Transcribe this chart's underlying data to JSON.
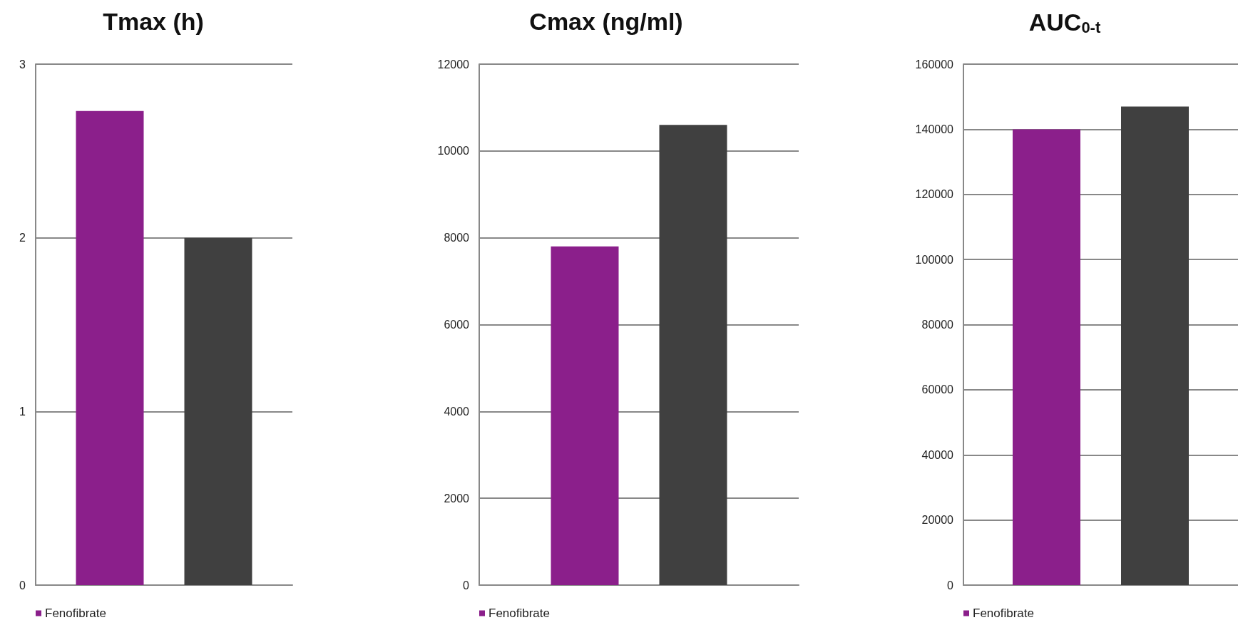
{
  "chart_data": [
    {
      "type": "bar",
      "title": "Tmax (h)",
      "categories": [
        null
      ],
      "series": [
        {
          "name": "Fenofibrate",
          "color": "#8b1f8b",
          "values": [
            2.73
          ]
        },
        {
          "color": "#404040",
          "values": [
            2.0
          ]
        }
      ],
      "ylim": [
        0,
        3
      ],
      "yticks": [
        0,
        1,
        2,
        3
      ],
      "grid": "y",
      "legend": "bottom left"
    },
    {
      "type": "bar",
      "title": "Cmax (ng/ml)",
      "categories": [
        null
      ],
      "series": [
        {
          "name": "Fenofibrate",
          "color": "#8b1f8b",
          "values": [
            7800
          ]
        },
        {
          "color": "#404040",
          "values": [
            10600
          ]
        }
      ],
      "ylim": [
        0,
        12000
      ],
      "yticks": [
        0,
        2000,
        4000,
        6000,
        8000,
        10000,
        12000
      ],
      "grid": "y",
      "legend": "bottom left"
    },
    {
      "type": "bar",
      "title": "AUC$_{0-t}$",
      "categories": [
        null
      ],
      "series": [
        {
          "name": "Fenofibrate",
          "color": "#8b1f8b",
          "values": [
            140000
          ]
        },
        {
          "color": "#404040",
          "values": [
            147000
          ]
        }
      ],
      "ylim": [
        0,
        160000
      ],
      "yticks": [
        0,
        20000,
        40000,
        60000,
        80000,
        100000,
        120000,
        140000,
        160000
      ],
      "grid": "y",
      "legend": "bottom left"
    }
  ]
}
